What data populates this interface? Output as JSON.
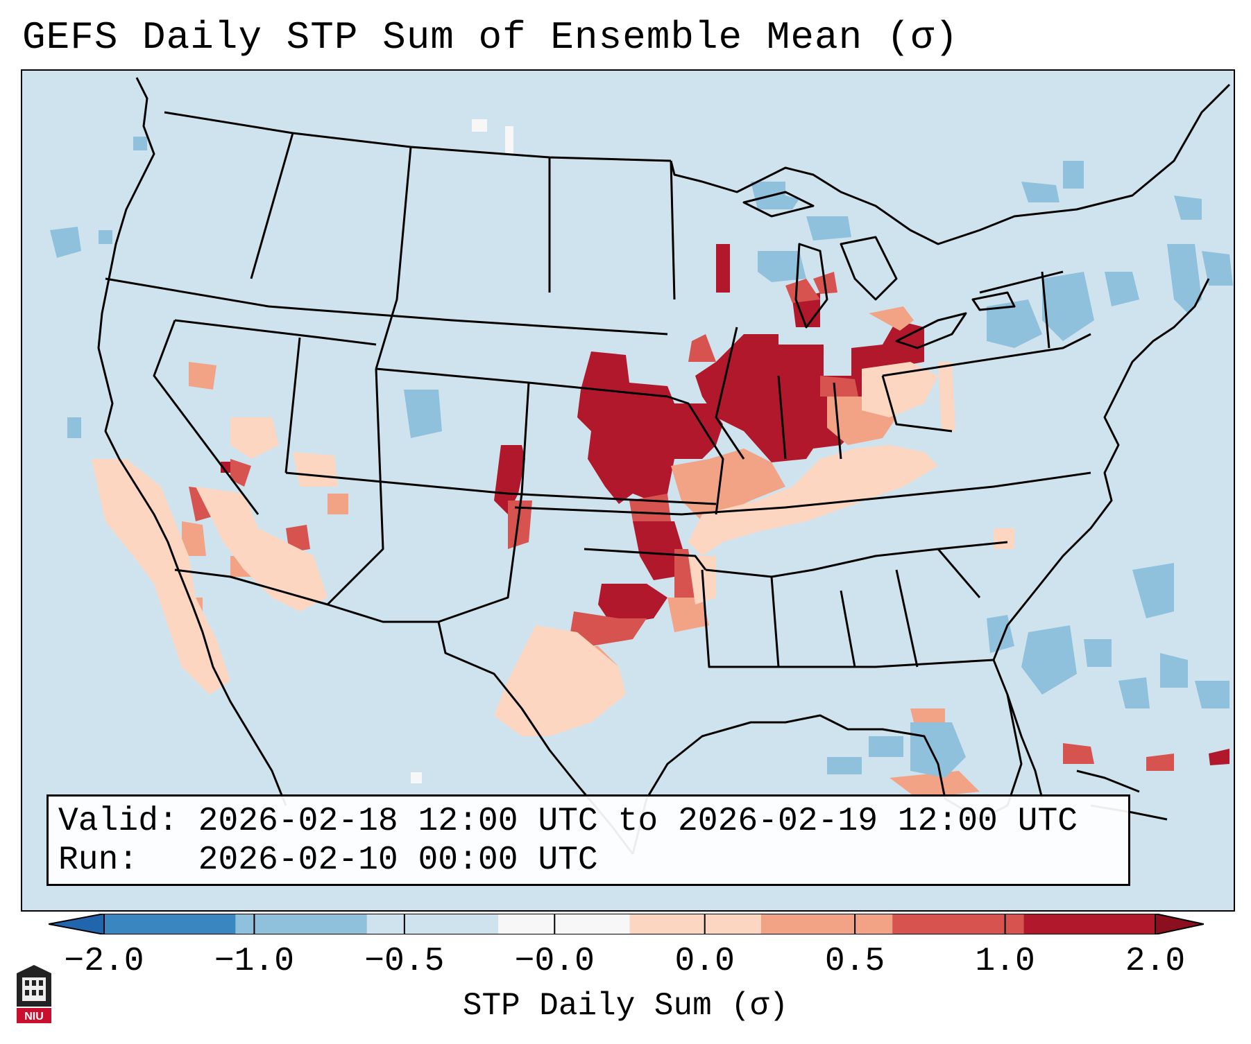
{
  "title": "GEFS Daily STP Sum of Ensemble Mean (σ)",
  "info": {
    "valid_label": "Valid:",
    "valid_value": "2026-02-18 12:00 UTC to 2026-02-19 12:00 UTC",
    "run_label": "Run:",
    "run_value": "2026-02-10 00:00 UTC"
  },
  "colorbar": {
    "label": "STP Daily Sum (σ)",
    "ticks": [
      "−2.0",
      "−1.0",
      "−0.5",
      "−0.0",
      "0.0",
      "0.5",
      "1.0",
      "2.0"
    ],
    "colors": [
      "#3a86c0",
      "#8fc1dd",
      "#cfe3ee",
      "#f7f7f7",
      "#fdd6c1",
      "#f2a385",
      "#d6534f",
      "#b2182b"
    ],
    "under_color": "#2166ac",
    "over_color": "#8b0f1f"
  },
  "map": {
    "projection": "Lambert Conformal (CONUS)",
    "background_level": "−0.5 to −0.0",
    "highlight_regions": [
      "Upper Midwest / Great Lakes",
      "Ohio Valley",
      "Central Plains",
      "Southern Plains",
      "Desert Southwest"
    ]
  },
  "logo": {
    "text": "NIU",
    "icon": "university-seal-icon"
  }
}
